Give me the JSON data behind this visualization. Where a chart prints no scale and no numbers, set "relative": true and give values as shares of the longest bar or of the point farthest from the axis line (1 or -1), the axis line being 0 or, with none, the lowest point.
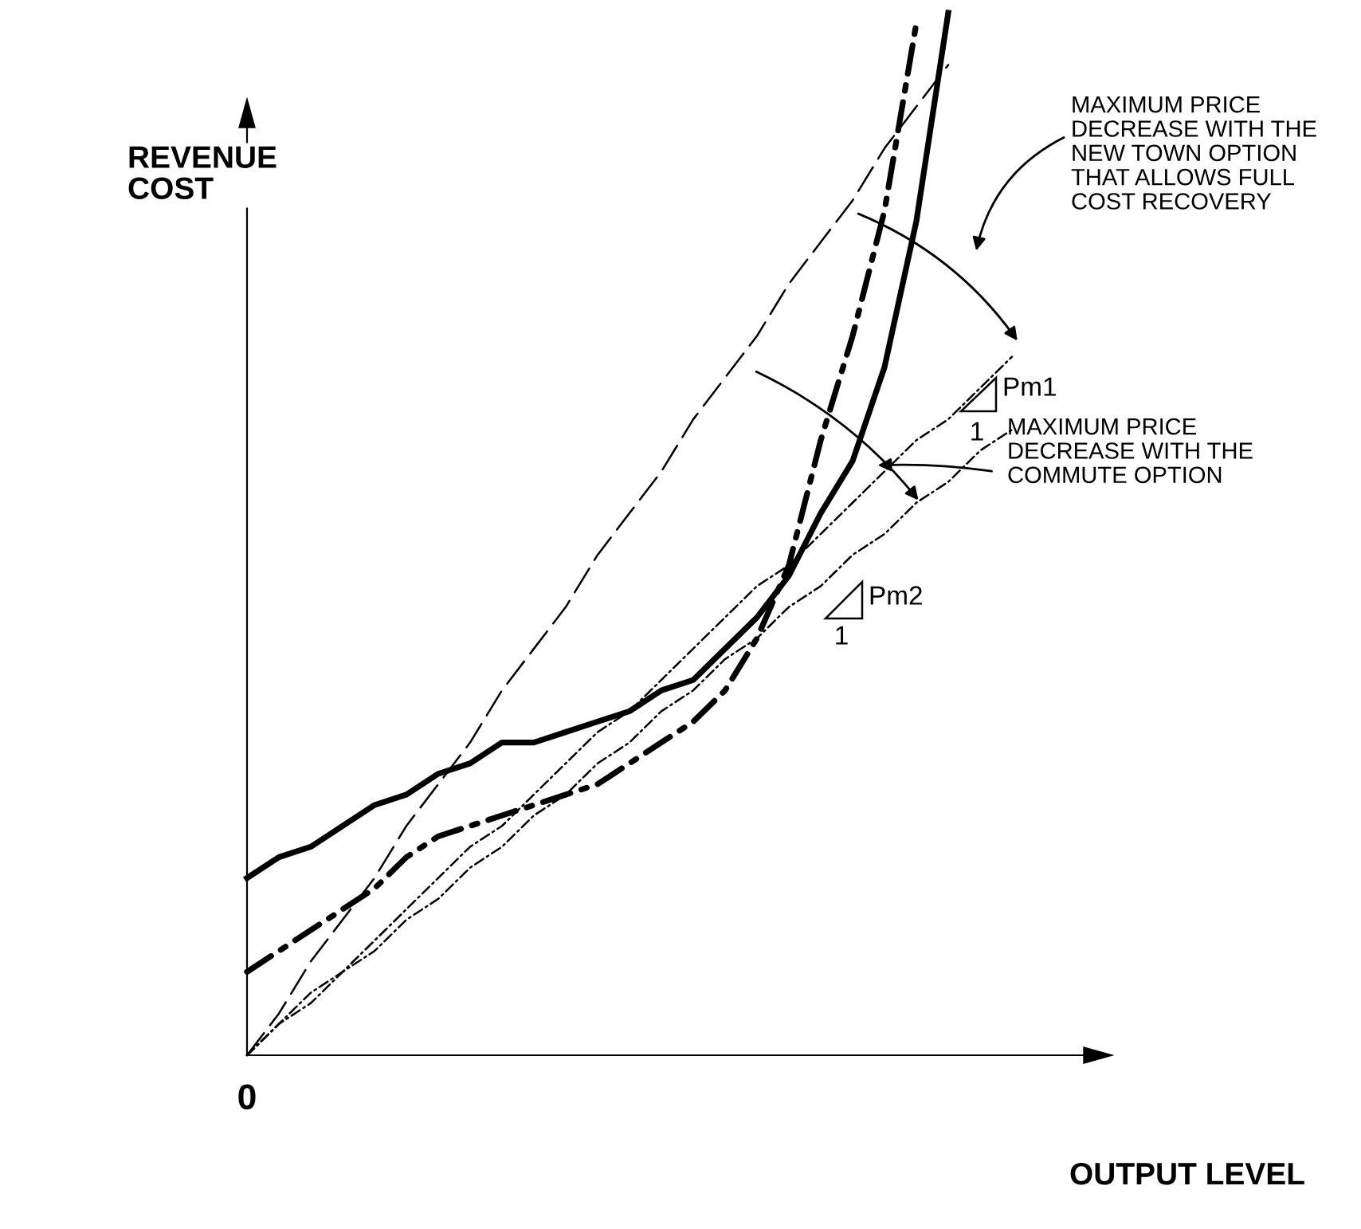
{
  "chart_data": {
    "type": "line",
    "relative": true,
    "xlabel": "OUTPUT LEVEL",
    "ylabel": "REVENUE\nCOST",
    "categories": [
      null,
      null,
      null,
      null,
      null,
      null,
      null,
      null,
      null,
      null,
      null,
      null,
      null,
      null,
      null,
      null,
      null,
      null,
      null,
      null,
      null,
      null,
      null,
      null,
      null,
      null,
      null,
      null
    ],
    "series": [
      {
        "color": "#000000",
        "line_style": "solid",
        "values": [
          0.17,
          0.19,
          0.2,
          0.22,
          0.24,
          0.25,
          0.27,
          0.28,
          0.3,
          0.3,
          0.31,
          0.32,
          0.33,
          0.35,
          0.36,
          0.39,
          0.42,
          0.46,
          0.52,
          0.57,
          0.66,
          0.8,
          1.0,
          null,
          null,
          null,
          null,
          null
        ]
      },
      {
        "color": "#000000",
        "line_style": "dashdot",
        "values": [
          0.08,
          0.1,
          0.12,
          0.14,
          0.16,
          0.19,
          0.21,
          0.22,
          0.23,
          0.24,
          0.25,
          0.26,
          0.28,
          0.3,
          0.32,
          0.35,
          0.4,
          0.47,
          0.59,
          0.69,
          0.81,
          0.99,
          null,
          null,
          null,
          null,
          null,
          null
        ]
      },
      {
        "color": "#000000",
        "line_style": "dashed",
        "values": [
          0,
          0.04,
          0.09,
          0.13,
          0.17,
          0.22,
          0.26,
          0.3,
          0.35,
          0.39,
          0.43,
          0.48,
          0.52,
          0.56,
          0.61,
          0.65,
          0.69,
          0.74,
          0.78,
          0.82,
          0.87,
          0.91,
          0.95,
          null,
          null,
          null,
          null,
          null
        ]
      },
      {
        "color": "#000000",
        "line_style": "dashdot",
        "values": [
          0,
          0.03,
          0.06,
          0.08,
          0.11,
          0.14,
          0.17,
          0.2,
          0.22,
          0.25,
          0.28,
          0.31,
          0.33,
          0.36,
          0.39,
          0.42,
          0.45,
          0.47,
          0.5,
          0.53,
          0.56,
          0.59,
          0.61,
          0.64,
          0.67,
          null,
          null,
          null
        ]
      },
      {
        "color": "#000000",
        "line_style": "dashdot",
        "values": [
          0,
          0.03,
          0.05,
          0.08,
          0.1,
          0.13,
          0.15,
          0.18,
          0.2,
          0.23,
          0.25,
          0.28,
          0.3,
          0.33,
          0.35,
          0.38,
          0.4,
          0.43,
          0.45,
          0.48,
          0.5,
          0.53,
          0.55,
          0.58,
          0.6,
          null,
          null,
          null
        ]
      }
    ],
    "annotations": [
      "MAXIMUM PRICE\nDECREASE WITH THE\nNEW TOWN OPTION\nTHAT ALLOWS FULL\nCOST RECOVERY",
      "MAXIMUM PRICE\nDECREASE WITH THE\nCOMMUTE OPTION",
      "Pm1",
      "1",
      "Pm2",
      "1",
      "0"
    ],
    "grid": false,
    "marker": "none"
  }
}
